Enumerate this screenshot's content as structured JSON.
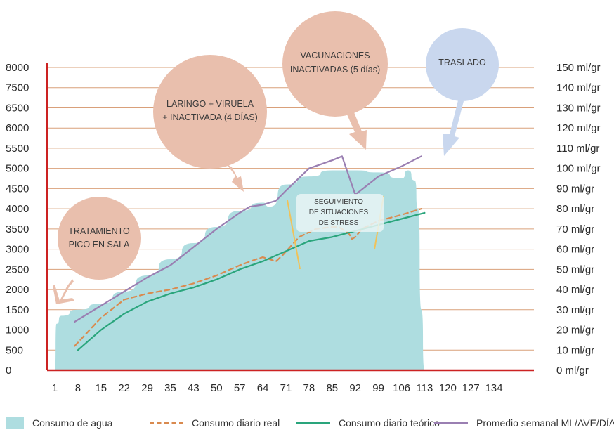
{
  "chart_data": {
    "type": "line",
    "x_ticks": [
      "1",
      "8",
      "15",
      "22",
      "29",
      "35",
      "43",
      "50",
      "57",
      "64",
      "71",
      "78",
      "85",
      "92",
      "99",
      "106",
      "113",
      "120",
      "127",
      "134"
    ],
    "y_left_ticks": [
      "0",
      "500",
      "1000",
      "1500",
      "2000",
      "2500",
      "3000",
      "3500",
      "4000",
      "4500",
      "5000",
      "5500",
      "6000",
      "6500",
      "7500",
      "8000"
    ],
    "y_right_ticks": [
      "0 ml/gr",
      "10 ml/gr",
      "20 ml/gr",
      "30 ml/gr",
      "40 ml/gr",
      "50 ml/gr",
      "60 ml/gr",
      "70 ml/gr",
      "80 ml/gr",
      "90 ml/gr",
      "100 ml/gr",
      "110 ml/gr",
      "120 ml/gr",
      "130 ml/gr",
      "140 ml/gr",
      "150 ml/gr"
    ],
    "grid": "horizontal",
    "legend_position": "bottom",
    "series": [
      {
        "name": "Consumo de agua",
        "kind": "area",
        "color": "#aedde0",
        "x": [
          1,
          1.5,
          3,
          8,
          15,
          22,
          29,
          35,
          43,
          50,
          57,
          64,
          66,
          71,
          78,
          85,
          92,
          99,
          106,
          108,
          110,
          111,
          112,
          113
        ],
        "values": [
          0,
          1150,
          1350,
          1500,
          1650,
          1950,
          2350,
          2750,
          3150,
          3550,
          3950,
          4150,
          4050,
          4600,
          4800,
          4950,
          4950,
          4900,
          4750,
          4950,
          4700,
          4000,
          1500,
          0
        ]
      },
      {
        "name": "Consumo diario real",
        "kind": "dashed",
        "color": "#d98a4f",
        "x": [
          7,
          15,
          22,
          29,
          35,
          43,
          50,
          57,
          62,
          64,
          68,
          70,
          75,
          80,
          85,
          87,
          90,
          91,
          92,
          94,
          99,
          106,
          112
        ],
        "values": [
          600,
          1300,
          1750,
          1900,
          2000,
          2150,
          2350,
          2600,
          2750,
          2800,
          2700,
          2850,
          3300,
          3500,
          3550,
          3550,
          3400,
          3250,
          3300,
          3500,
          3700,
          3850,
          4000
        ]
      },
      {
        "name": "Consumo diario teórico",
        "kind": "solid",
        "color": "#2aa57c",
        "x": [
          8,
          15,
          22,
          29,
          35,
          43,
          50,
          57,
          64,
          71,
          78,
          85,
          92,
          99,
          106,
          113
        ],
        "values": [
          500,
          1000,
          1400,
          1700,
          1900,
          2050,
          2250,
          2500,
          2700,
          2950,
          3200,
          3300,
          3450,
          3600,
          3750,
          3900
        ]
      },
      {
        "name": "Promedio semanal ML/AVE/DÍA",
        "kind": "solid",
        "color": "#9a7fb2",
        "x": [
          7,
          15,
          22,
          29,
          35,
          43,
          50,
          57,
          60,
          64,
          68,
          71,
          78,
          85,
          88,
          92,
          99,
          106,
          112
        ],
        "values": [
          1200,
          1600,
          1950,
          2300,
          2600,
          3050,
          3500,
          3900,
          4050,
          4100,
          4200,
          4450,
          5000,
          5200,
          5300,
          4350,
          4800,
          5050,
          5300
        ]
      }
    ],
    "annotations": [
      {
        "lines": [
          "TRATAMIENTO",
          "PICO EN SALA"
        ]
      },
      {
        "lines": [
          "LARINGO + VIRUELA",
          "+ INACTIVADA (4 DÍAS)"
        ]
      },
      {
        "lines": [
          "VACUNACIONES",
          "INACTIVADAS  (5 días)"
        ]
      },
      {
        "lines": [
          "TRASLADO"
        ]
      },
      {
        "lines": [
          "SEGUIMIENTO",
          "DE SITUACIONES",
          "DE STRESS"
        ]
      }
    ],
    "colors": {
      "axis": "#cc2222",
      "grid": "#d9a07a",
      "bubble": "#e9bfad",
      "bubble_last": "#c9d7ee"
    }
  },
  "legend": [
    {
      "label": "Consumo de agua",
      "kind": "box",
      "color": "#aedde0"
    },
    {
      "label": "Consumo diario real",
      "kind": "dashed",
      "color": "#d98a4f"
    },
    {
      "label": "Consumo diario teórico",
      "kind": "solid",
      "color": "#2aa57c"
    },
    {
      "label": "Promedio semanal ML/AVE/DÍA",
      "kind": "solid",
      "color": "#9a7fb2"
    }
  ]
}
